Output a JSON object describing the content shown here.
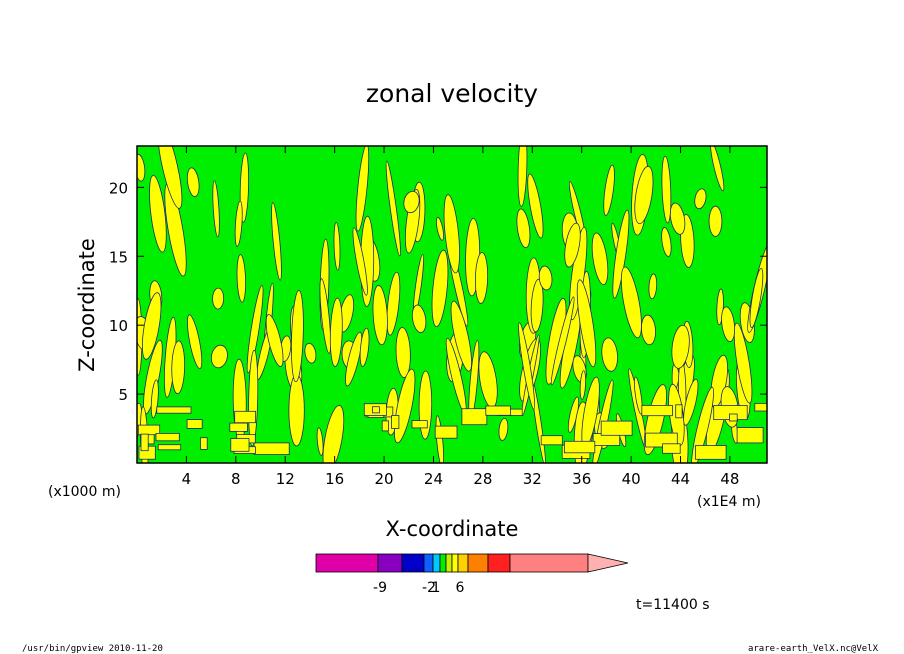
{
  "chart_data": {
    "type": "heatmap",
    "title": "zonal velocity",
    "xlabel": "X-coordinate",
    "ylabel": "Z-coordinate",
    "x_unit": "(x1E4 m)",
    "y_unit": "(x1000 m)",
    "xlim": [
      0,
      51
    ],
    "ylim": [
      0,
      23
    ],
    "x_ticks": [
      "4",
      "8",
      "12",
      "16",
      "20",
      "24",
      "28",
      "32",
      "36",
      "40",
      "44",
      "48"
    ],
    "y_ticks": [
      "5",
      "10",
      "15",
      "20"
    ],
    "grid": false,
    "fill_colors": {
      "negative": "#00ee00",
      "positive": "#ffff00",
      "contour": "#1a2a6a"
    },
    "colorbar": {
      "labels": [
        "-9",
        "-2",
        "1",
        "6"
      ],
      "colors": [
        "#e000a8",
        "#8800c0",
        "#0000c8",
        "#1060ff",
        "#00c8ff",
        "#00ee00",
        "#c8ee00",
        "#ffff00",
        "#ffd000",
        "#ff8000",
        "#ff2020",
        "#ff8080",
        "#ffb0b0"
      ]
    },
    "time_label": "t=11400 s"
  },
  "footer": {
    "left": "/usr/bin/gpview   2010-11-20",
    "right": "arare-earth_VelX.nc@VelX"
  }
}
